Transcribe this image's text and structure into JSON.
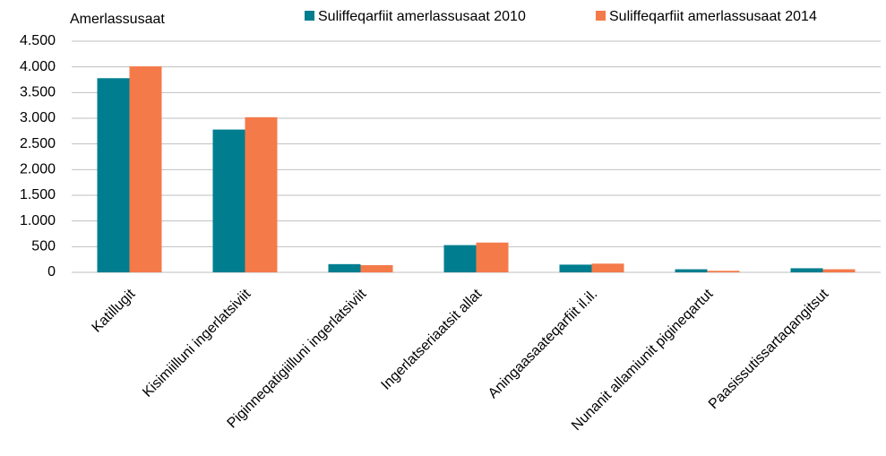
{
  "chart_data": {
    "type": "bar",
    "y_label": "Amerlassusaat",
    "categories": [
      "Katillugit",
      "Kisimiilluni ingerlatsiviit",
      "Piginneqatigiilluni ingerlatsiviit",
      "Ingerlatseriaatsit allat",
      "Aningaasaateqarfiit il.il.",
      "Nunanit allamiunit pigineqartut",
      "Paasissutissartaqangitsut"
    ],
    "series": [
      {
        "name": "Suliffeqarfiit amerlassusaat 2010",
        "color": "#007e8f",
        "values": [
          3780,
          2780,
          160,
          530,
          150,
          60,
          80
        ]
      },
      {
        "name": "Suliffeqarfiit amerlassusaat 2014",
        "color": "#f47a4a",
        "values": [
          4010,
          3020,
          140,
          580,
          170,
          30,
          60
        ]
      }
    ],
    "ylim": [
      0,
      4500
    ],
    "yticks": [
      0,
      500,
      {
        "value": 1000,
        "label": "1.000"
      },
      {
        "value": 1500,
        "label": "1.500"
      },
      {
        "value": 2000,
        "label": "2.000"
      },
      {
        "value": 2500,
        "label": "2.500"
      },
      {
        "value": 3000,
        "label": "3.000"
      },
      {
        "value": 3500,
        "label": "3.500"
      },
      {
        "value": 4000,
        "label": "4.000"
      },
      {
        "value": 4500,
        "label": "4.500"
      }
    ],
    "grid": true,
    "legend": "top"
  }
}
